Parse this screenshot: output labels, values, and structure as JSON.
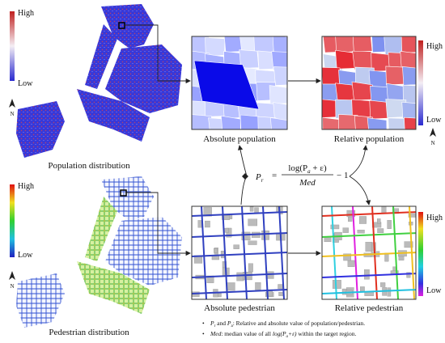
{
  "panels": {
    "population_map": {
      "legend": {
        "high": "High",
        "low": "Low"
      },
      "north": "N",
      "caption": "Population distribution"
    },
    "pedestrian_map": {
      "legend": {
        "high": "High",
        "low": "Low"
      },
      "north": "N",
      "caption": "Pedestrian distribution"
    },
    "absolute_population": {
      "caption": "Absolute population"
    },
    "relative_population": {
      "legend": {
        "high": "High",
        "low": "Low"
      },
      "north": "N",
      "caption": "Relative population"
    },
    "absolute_pedestrian": {
      "caption": "Absolute pedestrian"
    },
    "relative_pedestrian": {
      "legend": {
        "high": "High",
        "low": "Low"
      },
      "caption": "Relative pedestrian"
    }
  },
  "formula": {
    "lhs": "P",
    "lhs_sub": "r",
    "equals": "=",
    "numerator": "log(P",
    "numerator_sub": "a",
    "numerator_end": " + ε)",
    "denominator": "Med",
    "tail": "− 1"
  },
  "notes": [
    {
      "sym1": "P",
      "sub1": "r",
      "and": " and ",
      "sym2": "P",
      "sub2": "a",
      "text": ": Relative and absolute value of population/pedestrian."
    },
    {
      "sym": "Med",
      "text": ": median value of all ",
      "expr": "log(P",
      "sub": "a",
      "expr_end": "+ε)",
      "tail": " within the target region."
    }
  ]
}
